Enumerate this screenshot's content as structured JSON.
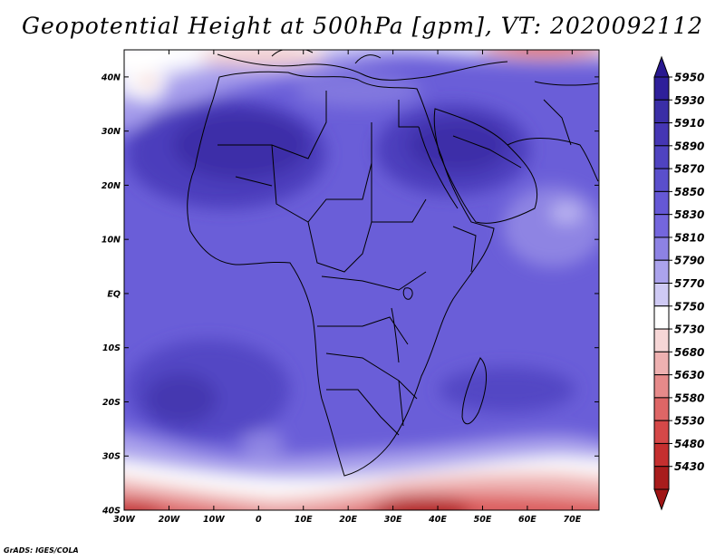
{
  "title": "Geopotential Height at 500hPa [gpm], VT: 2020092112",
  "credit": "GrADS: IGES/COLA",
  "map": {
    "projection": "lat-lon",
    "lon_range": [
      -30,
      76
    ],
    "lat_range": [
      -40,
      45
    ],
    "lat_ticks": [
      {
        "value": 40,
        "label": "40N"
      },
      {
        "value": 30,
        "label": "30N"
      },
      {
        "value": 20,
        "label": "20N"
      },
      {
        "value": 10,
        "label": "10N"
      },
      {
        "value": 0,
        "label": "EQ"
      },
      {
        "value": -10,
        "label": "10S"
      },
      {
        "value": -20,
        "label": "20S"
      },
      {
        "value": -30,
        "label": "30S"
      },
      {
        "value": -40,
        "label": "40S"
      }
    ],
    "lon_ticks": [
      {
        "value": -30,
        "label": "30W"
      },
      {
        "value": -20,
        "label": "20W"
      },
      {
        "value": -10,
        "label": "10W"
      },
      {
        "value": 0,
        "label": "0"
      },
      {
        "value": 10,
        "label": "10E"
      },
      {
        "value": 20,
        "label": "20E"
      },
      {
        "value": 30,
        "label": "30E"
      },
      {
        "value": 40,
        "label": "40E"
      },
      {
        "value": 50,
        "label": "50E"
      },
      {
        "value": 60,
        "label": "60E"
      },
      {
        "value": 70,
        "label": "70E"
      }
    ]
  },
  "colorbar": {
    "levels": [
      {
        "label": "5950",
        "color": "#2e1f9a"
      },
      {
        "label": "5930",
        "color": "#3a2ea6"
      },
      {
        "label": "5910",
        "color": "#4536b4"
      },
      {
        "label": "5890",
        "color": "#4f43c0"
      },
      {
        "label": "5870",
        "color": "#5a4fcc"
      },
      {
        "label": "5850",
        "color": "#6558d6"
      },
      {
        "label": "5830",
        "color": "#7466dd"
      },
      {
        "label": "5810",
        "color": "#8d82e4"
      },
      {
        "label": "5790",
        "color": "#aba3ec"
      },
      {
        "label": "5770",
        "color": "#cfcaf4"
      },
      {
        "label": "5750",
        "color": "#ffffff"
      },
      {
        "label": "5730",
        "color": "#f6d6d6"
      },
      {
        "label": "5680",
        "color": "#eeb1b1"
      },
      {
        "label": "5630",
        "color": "#e68a8a"
      },
      {
        "label": "5580",
        "color": "#de6666"
      },
      {
        "label": "5530",
        "color": "#d54848"
      },
      {
        "label": "5480",
        "color": "#c52f2f"
      },
      {
        "label": "5430",
        "color": "#a81c1c"
      }
    ],
    "top_arrow_color": "#281890",
    "bottom_arrow_color": "#a01515"
  }
}
